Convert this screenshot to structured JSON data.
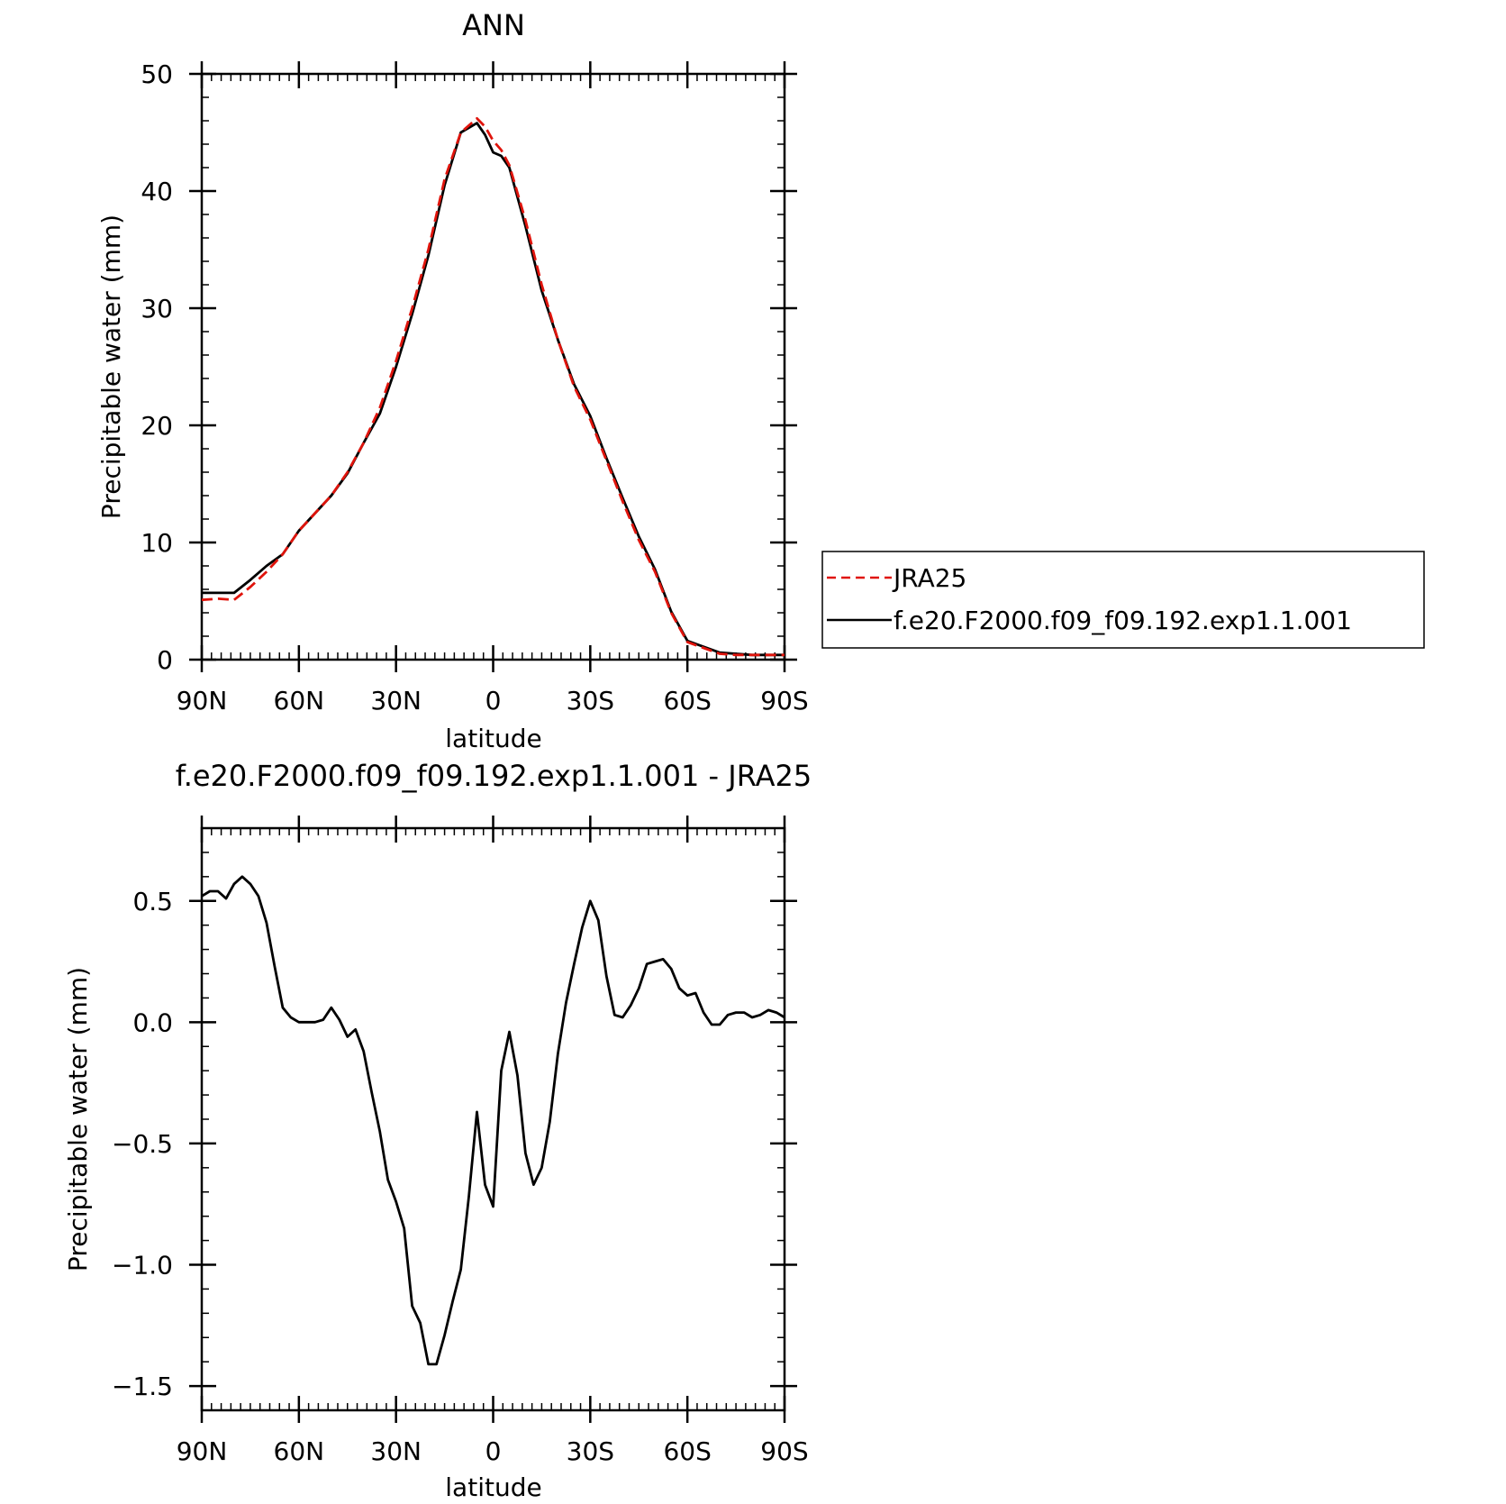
{
  "chart_data": [
    {
      "type": "line",
      "title": "ANN",
      "xlabel": "latitude",
      "ylabel": "Precipitable water (mm)",
      "xlim": [
        90,
        -90
      ],
      "ylim": [
        0,
        50
      ],
      "xticks": [
        90,
        60,
        30,
        0,
        -30,
        -60,
        -90
      ],
      "xtick_labels": [
        "90N",
        "60N",
        "30N",
        "0",
        "30S",
        "60S",
        "90S"
      ],
      "yticks": [
        0,
        10,
        20,
        30,
        40,
        50
      ],
      "ytick_labels": [
        "0",
        "10",
        "20",
        "30",
        "40",
        "50"
      ],
      "legend": {
        "position": "right",
        "entries": [
          "JRA25",
          "f.e20.F2000.f09_f09.192.exp1.1.001"
        ]
      },
      "series": [
        {
          "name": "JRA25",
          "color": "#e0140c",
          "dash": "dashed",
          "x": [
            90,
            85,
            80,
            75,
            70,
            65,
            60,
            55,
            50,
            45,
            40,
            35,
            30,
            25,
            20,
            15,
            10,
            5,
            2.5,
            0,
            -2.5,
            -5,
            -10,
            -15,
            -20,
            -25,
            -30,
            -35,
            -40,
            -45,
            -50,
            -55,
            -60,
            -65,
            -70,
            -75,
            -80,
            -85,
            -90
          ],
          "y": [
            5.1,
            5.2,
            5.1,
            6.2,
            7.5,
            9.0,
            11.0,
            12.5,
            14.0,
            16.0,
            18.5,
            21.5,
            25.5,
            30.0,
            35.0,
            41.0,
            45.0,
            46.2,
            45.5,
            44.3,
            43.5,
            42.2,
            37.5,
            32.0,
            27.3,
            23.3,
            20.5,
            17.0,
            13.5,
            10.2,
            7.5,
            4.0,
            1.5,
            1.0,
            0.5,
            0.4,
            0.4,
            0.4,
            0.4
          ]
        },
        {
          "name": "f.e20.F2000.f09_f09.192.exp1.1.001",
          "color": "#000000",
          "dash": "solid",
          "x": [
            90,
            85,
            80,
            75,
            70,
            65,
            60,
            55,
            50,
            45,
            40,
            35,
            30,
            25,
            20,
            15,
            10,
            5,
            2.5,
            0,
            -2.5,
            -5,
            -10,
            -15,
            -20,
            -25,
            -30,
            -35,
            -40,
            -45,
            -50,
            -55,
            -60,
            -65,
            -70,
            -75,
            -80,
            -85,
            -90
          ],
          "y": [
            5.7,
            5.7,
            5.7,
            6.8,
            8.0,
            9.0,
            11.0,
            12.5,
            14.0,
            15.9,
            18.5,
            21.0,
            25.0,
            29.5,
            34.5,
            40.5,
            45.0,
            45.8,
            44.8,
            43.3,
            43.0,
            42.0,
            37.0,
            31.5,
            27.3,
            23.5,
            20.8,
            17.2,
            13.8,
            10.5,
            7.7,
            4.1,
            1.6,
            1.1,
            0.6,
            0.5,
            0.4,
            0.4,
            0.4
          ]
        }
      ]
    },
    {
      "type": "line",
      "title": "f.e20.F2000.f09_f09.192.exp1.1.001 - JRA25",
      "xlabel": "latitude",
      "ylabel": "Precipitable water (mm)",
      "xlim": [
        90,
        -90
      ],
      "ylim": [
        -1.6,
        0.8
      ],
      "xticks": [
        90,
        60,
        30,
        0,
        -30,
        -60,
        -90
      ],
      "xtick_labels": [
        "90N",
        "60N",
        "30N",
        "0",
        "30S",
        "60S",
        "90S"
      ],
      "yticks": [
        -1.5,
        -1.0,
        -0.5,
        0.0,
        0.5
      ],
      "ytick_labels": [
        "−1.5",
        "−1.0",
        "−0.5",
        "0.0",
        "0.5"
      ],
      "series": [
        {
          "color": "#000000",
          "dash": "solid",
          "x": [
            90,
            87.5,
            85,
            82.5,
            80,
            77.5,
            75,
            72.5,
            70,
            67.5,
            65,
            62.5,
            60,
            57.5,
            55,
            52.5,
            50,
            47.5,
            45,
            42.5,
            40,
            37.5,
            35,
            32.5,
            30,
            27.5,
            25,
            22.5,
            20,
            17.5,
            15,
            12.5,
            10,
            7.5,
            5,
            2.5,
            0,
            -2.5,
            -5,
            -7.5,
            -10,
            -12.5,
            -15,
            -17.5,
            -20,
            -22.5,
            -25,
            -27.5,
            -30,
            -32.5,
            -35,
            -37.5,
            -40,
            -42.5,
            -45,
            -47.5,
            -50,
            -52.5,
            -55,
            -57.5,
            -60,
            -62.5,
            -65,
            -67.5,
            -70,
            -72.5,
            -75,
            -77.5,
            -80,
            -82.5,
            -85,
            -87.5,
            -90
          ],
          "y": [
            0.52,
            0.54,
            0.54,
            0.51,
            0.57,
            0.6,
            0.57,
            0.52,
            0.41,
            0.23,
            0.06,
            0.02,
            0.0,
            0.0,
            0.0,
            0.01,
            0.06,
            0.01,
            -0.06,
            -0.03,
            -0.12,
            -0.29,
            -0.45,
            -0.65,
            -0.74,
            -0.85,
            -1.17,
            -1.24,
            -1.41,
            -1.41,
            -1.29,
            -1.15,
            -1.02,
            -0.72,
            -0.37,
            -0.67,
            -0.76,
            -0.2,
            -0.04,
            -0.22,
            -0.54,
            -0.67,
            -0.6,
            -0.41,
            -0.13,
            0.08,
            0.24,
            0.39,
            0.5,
            0.42,
            0.19,
            0.03,
            0.02,
            0.07,
            0.14,
            0.24,
            0.25,
            0.26,
            0.22,
            0.14,
            0.11,
            0.12,
            0.04,
            -0.01,
            -0.01,
            0.03,
            0.04,
            0.04,
            0.02,
            0.03,
            0.05,
            0.04,
            0.02
          ]
        }
      ]
    }
  ]
}
